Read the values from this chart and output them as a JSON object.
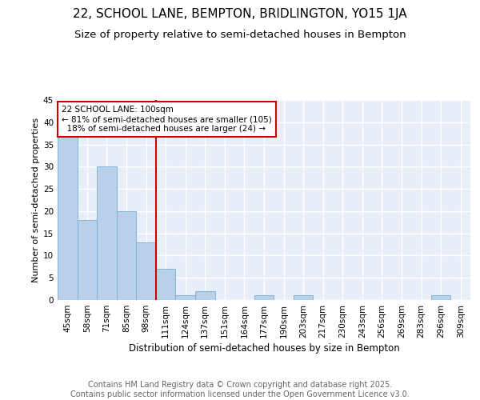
{
  "title1": "22, SCHOOL LANE, BEMPTON, BRIDLINGTON, YO15 1JA",
  "title2": "Size of property relative to semi-detached houses in Bempton",
  "xlabel": "Distribution of semi-detached houses by size in Bempton",
  "ylabel": "Number of semi-detached properties",
  "categories": [
    "45sqm",
    "58sqm",
    "71sqm",
    "85sqm",
    "98sqm",
    "111sqm",
    "124sqm",
    "137sqm",
    "151sqm",
    "164sqm",
    "177sqm",
    "190sqm",
    "203sqm",
    "217sqm",
    "230sqm",
    "243sqm",
    "256sqm",
    "269sqm",
    "283sqm",
    "296sqm",
    "309sqm"
  ],
  "values": [
    37,
    18,
    30,
    20,
    13,
    7,
    1,
    2,
    0,
    0,
    1,
    0,
    1,
    0,
    0,
    0,
    0,
    0,
    0,
    1,
    0
  ],
  "bar_color": "#b8d0ea",
  "bar_edge_color": "#7aadd4",
  "highlight_index": 4,
  "highlight_color": "#cc0000",
  "annotation_text": "22 SCHOOL LANE: 100sqm\n← 81% of semi-detached houses are smaller (105)\n  18% of semi-detached houses are larger (24) →",
  "annotation_box_color": "#ffffff",
  "annotation_box_edge": "#cc0000",
  "ylim": [
    0,
    45
  ],
  "yticks": [
    0,
    5,
    10,
    15,
    20,
    25,
    30,
    35,
    40,
    45
  ],
  "footer": "Contains HM Land Registry data © Crown copyright and database right 2025.\nContains public sector information licensed under the Open Government Licence v3.0.",
  "bg_color": "#e8eef8",
  "grid_color": "#ffffff",
  "title1_fontsize": 11,
  "title2_fontsize": 9.5,
  "annotation_fontsize": 7.5,
  "footer_fontsize": 7,
  "ylabel_fontsize": 8,
  "xlabel_fontsize": 8.5,
  "tick_fontsize": 7.5
}
